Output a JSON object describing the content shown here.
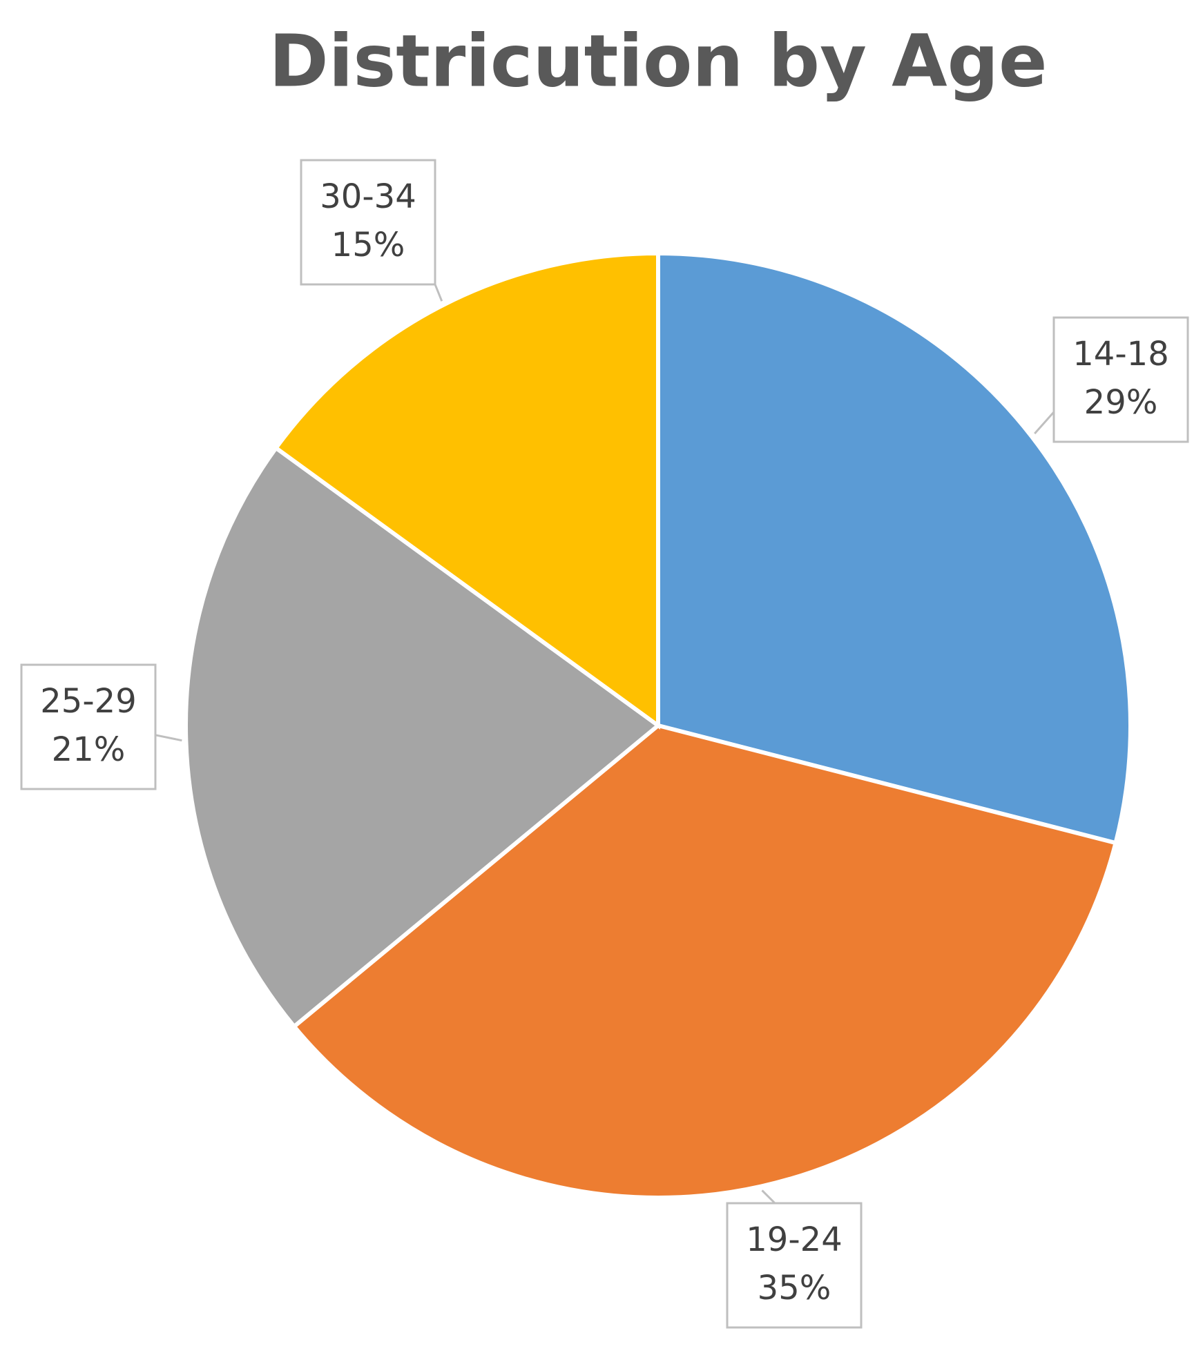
{
  "chart_data": {
    "type": "pie",
    "title": "Districution by Age",
    "categories": [
      "14-18",
      "19-24",
      "25-29",
      "30-34"
    ],
    "values": [
      29,
      35,
      21,
      15
    ],
    "value_labels": [
      "29%",
      "35%",
      "21%",
      "15%"
    ],
    "colors": [
      "#5b9bd5",
      "#ed7d31",
      "#a5a5a5",
      "#ffc000"
    ]
  }
}
